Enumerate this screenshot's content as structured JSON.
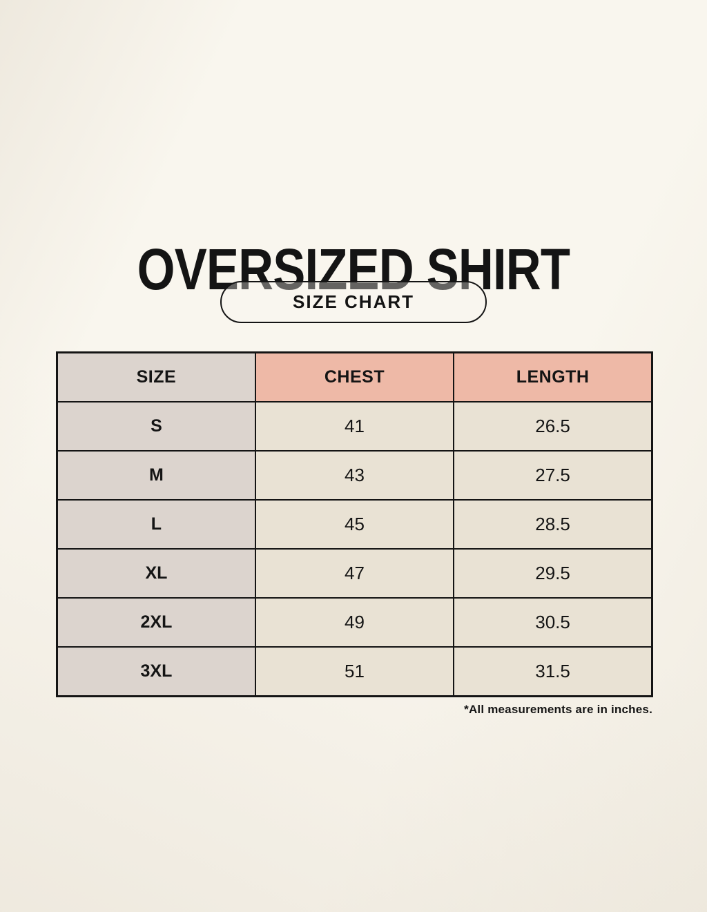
{
  "page": {
    "title": "OVERSIZED SHIRT",
    "badge_label": "SIZE CHART",
    "footnote": "*All measurements are in inches."
  },
  "colors": {
    "background": "#f9f6ee",
    "header_accent": "#eeb9a7",
    "size_column": "#dcd4ce",
    "data_cell": "#e9e2d4",
    "border": "#141414",
    "text": "#141414"
  },
  "chart_data": {
    "type": "table",
    "title": "OVERSIZED SHIRT",
    "subtitle": "SIZE CHART",
    "columns": [
      "SIZE",
      "CHEST",
      "LENGTH"
    ],
    "rows": [
      [
        "S",
        41,
        26.5
      ],
      [
        "M",
        43,
        27.5
      ],
      [
        "L",
        45,
        28.5
      ],
      [
        "XL",
        47,
        29.5
      ],
      [
        "2XL",
        49,
        30.5
      ],
      [
        "3XL",
        51,
        31.5
      ]
    ],
    "units": "inches",
    "footnote": "*All measurements are in inches."
  }
}
